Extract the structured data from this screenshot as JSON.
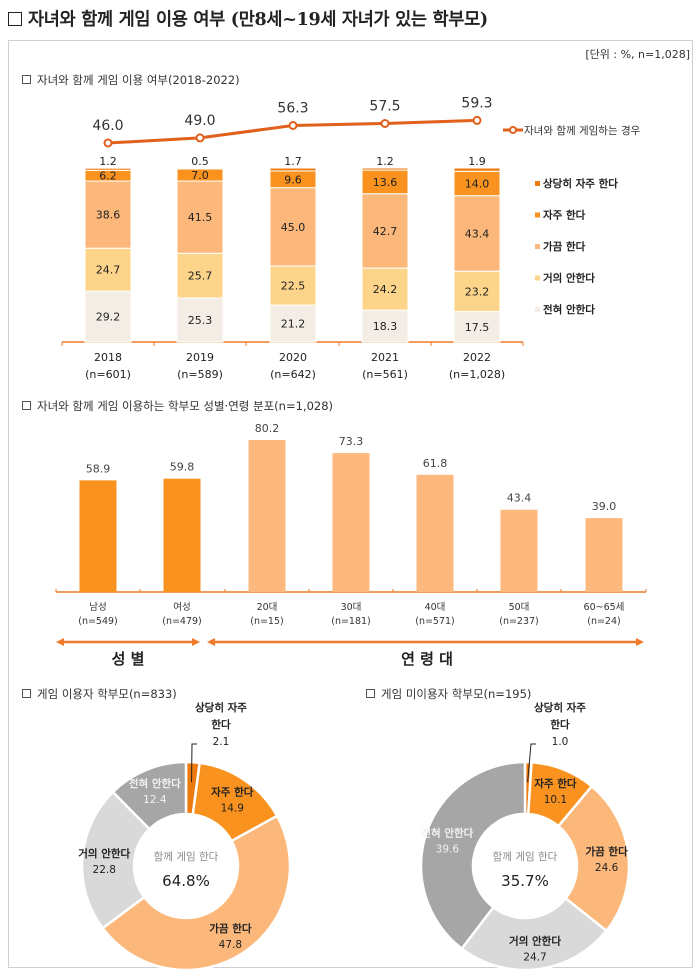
{
  "page": {
    "title": "자녀와 함께 게임 이용 여부 (만8세~19세 자녀가 있는 학부모)",
    "unit": "[단위 : %, n=1,028]"
  },
  "colors": {
    "very_often": "#ED7B10",
    "often": "#F9921E",
    "sometimes": "#FBB87A",
    "rarely": "#FDD58A",
    "never": "#F3EDE5",
    "line": "#E0601C",
    "axis": "#ED7B2A",
    "gender_bar": "#F9921E",
    "age_bar": "#FDB97D",
    "donut_rarely": "#D9D9D9",
    "donut_never": "#A6A6A6"
  },
  "chart_data": [
    {
      "type": "bar",
      "stacked": true,
      "title": "자녀와 함께 게임 이용 여부(2018-2022)",
      "categories": [
        "2018",
        "2019",
        "2020",
        "2021",
        "2022"
      ],
      "category_n": [
        "(n=601)",
        "(n=589)",
        "(n=642)",
        "(n=561)",
        "(n=1,028)"
      ],
      "ylim": [
        0,
        100
      ],
      "series": [
        {
          "key": "never",
          "name": "전혀 안한다",
          "values": [
            29.2,
            25.3,
            21.2,
            18.3,
            17.5
          ]
        },
        {
          "key": "rarely",
          "name": "거의 안한다",
          "values": [
            24.7,
            25.7,
            22.5,
            24.2,
            23.2
          ]
        },
        {
          "key": "sometimes",
          "name": "가끔 한다",
          "values": [
            38.6,
            41.5,
            45.0,
            42.7,
            43.4
          ]
        },
        {
          "key": "often",
          "name": "자주 한다",
          "values": [
            6.2,
            7.0,
            9.6,
            13.6,
            14.0
          ]
        },
        {
          "key": "very_often",
          "name": "상당히 자주 한다",
          "values": [
            1.2,
            0.5,
            1.7,
            1.2,
            1.9
          ]
        }
      ],
      "legend_order": [
        "상당히 자주 한다",
        "자주 한다",
        "가끔 한다",
        "거의 안한다",
        "전혀 안한다"
      ],
      "legend_keys": [
        "very_often",
        "often",
        "sometimes",
        "rarely",
        "never"
      ],
      "legend_position": "right",
      "line_series": {
        "name": "자녀와 함께 게임하는 경우",
        "values": [
          46.0,
          49.0,
          56.3,
          57.5,
          59.3
        ],
        "labels": [
          "46.0",
          "49.0",
          "56.3",
          "57.5",
          "59.3"
        ]
      },
      "value_labels": {
        "never": [
          "29.2",
          "25.3",
          "21.2",
          "18.3",
          "17.5"
        ],
        "rarely": [
          "24.7",
          "25.7",
          "22.5",
          "24.2",
          "23.2"
        ],
        "sometimes": [
          "38.6",
          "41.5",
          "45.0",
          "42.7",
          "43.4"
        ],
        "often": [
          "6.2",
          "7.0",
          "9.6",
          "13.6",
          "14.0"
        ],
        "very_often": [
          "1.2",
          "0.5",
          "1.7",
          "1.2",
          "1.9"
        ]
      }
    },
    {
      "type": "bar",
      "title": "자녀와 함께 게임 이용하는 학부모 성별·연령 분포(n=1,028)",
      "categories": [
        "남성",
        "여성",
        "20대",
        "30대",
        "40대",
        "50대",
        "60~65세"
      ],
      "category_n": [
        "(n=549)",
        "(n=479)",
        "(n=15)",
        "(n=181)",
        "(n=571)",
        "(n=237)",
        "(n=24)"
      ],
      "groups": [
        "gender",
        "gender",
        "age",
        "age",
        "age",
        "age",
        "age"
      ],
      "values": [
        58.9,
        59.8,
        80.2,
        73.3,
        61.8,
        43.4,
        39.0
      ],
      "labels": [
        "58.9",
        "59.8",
        "80.2",
        "73.3",
        "61.8",
        "43.4",
        "39.0"
      ],
      "ylim": [
        0,
        100
      ],
      "group_labels": {
        "gender": "성  별",
        "age": "연 령 대"
      }
    },
    {
      "type": "pie",
      "donut": true,
      "title": "게임 이용자 학부모(n=833)",
      "center_label": "함께 게임 한다",
      "center_value": "64.8%",
      "slices": [
        {
          "key": "very_often",
          "name": "상당히 자주 한다",
          "value": 2.1,
          "label_lines": [
            "상당히 자주",
            "한다",
            "2.1"
          ],
          "outside": true
        },
        {
          "key": "often",
          "name": "자주 한다",
          "value": 14.9,
          "label_lines": [
            "자주 한다",
            "14.9"
          ]
        },
        {
          "key": "sometimes",
          "name": "가끔 한다",
          "value": 47.8,
          "label_lines": [
            "가끔 한다",
            "47.8"
          ]
        },
        {
          "key": "donut_rarely",
          "name": "거의 안한다",
          "value": 22.8,
          "label_lines": [
            "거의 안한다",
            "22.8"
          ]
        },
        {
          "key": "donut_never",
          "name": "전혀 안한다",
          "value": 12.4,
          "label_lines": [
            "전혀 안한다",
            "12.4"
          ],
          "light_text": true
        }
      ]
    },
    {
      "type": "pie",
      "donut": true,
      "title": "게임 미이용자 학부모(n=195)",
      "center_label": "함께 게임 한다",
      "center_value": "35.7%",
      "slices": [
        {
          "key": "very_often",
          "name": "상당히 자주 한다",
          "value": 1.0,
          "label_lines": [
            "상당히 자주",
            "한다",
            "1.0"
          ],
          "outside": true
        },
        {
          "key": "often",
          "name": "자주 한다",
          "value": 10.1,
          "label_lines": [
            "자주 한다",
            "10.1"
          ]
        },
        {
          "key": "sometimes",
          "name": "가끔 한다",
          "value": 24.6,
          "label_lines": [
            "가끔 한다",
            "24.6"
          ]
        },
        {
          "key": "donut_rarely",
          "name": "거의 안한다",
          "value": 24.7,
          "label_lines": [
            "거의 안한다",
            "24.7"
          ]
        },
        {
          "key": "donut_never",
          "name": "전혀 안한다",
          "value": 39.6,
          "label_lines": [
            "전혀 안한다",
            "39.6"
          ],
          "light_text": true
        }
      ]
    }
  ]
}
